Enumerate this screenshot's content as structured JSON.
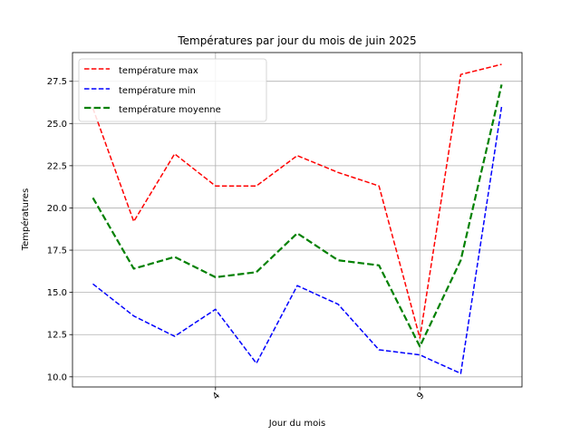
{
  "chart_data": {
    "type": "line",
    "title": "Températures par jour du mois de juin 2025",
    "xlabel": "Jour du mois",
    "ylabel": "Températures",
    "x": [
      1,
      2,
      3,
      4,
      5,
      6,
      7,
      8,
      9,
      10,
      11
    ],
    "xticks": [
      4,
      9
    ],
    "xtick_labels": [
      "4",
      "9"
    ],
    "xlim": [
      0.5,
      11.5
    ],
    "ylim": [
      9.4,
      29.2
    ],
    "yticks": [
      10.0,
      12.5,
      15.0,
      17.5,
      20.0,
      22.5,
      25.0,
      27.5
    ],
    "ytick_labels": [
      "10.0",
      "12.5",
      "15.0",
      "17.5",
      "20.0",
      "22.5",
      "25.0",
      "27.5"
    ],
    "grid": true,
    "legend_position": "top-left",
    "series": [
      {
        "name": "température max",
        "color": "#ff0000",
        "style": "dashed",
        "values": [
          25.9,
          19.2,
          23.2,
          21.3,
          21.3,
          23.1,
          22.1,
          21.3,
          12.3,
          27.9,
          28.5
        ]
      },
      {
        "name": "température min",
        "color": "#0000ff",
        "style": "dashed",
        "values": [
          15.5,
          13.6,
          12.4,
          14.0,
          10.8,
          15.4,
          14.3,
          11.6,
          11.3,
          10.2,
          26.0
        ]
      },
      {
        "name": "température moyenne",
        "color": "#008000",
        "style": "dashed-thick",
        "values": [
          20.6,
          16.4,
          17.1,
          15.9,
          16.2,
          18.5,
          16.9,
          16.6,
          11.8,
          16.9,
          27.3
        ]
      }
    ]
  }
}
